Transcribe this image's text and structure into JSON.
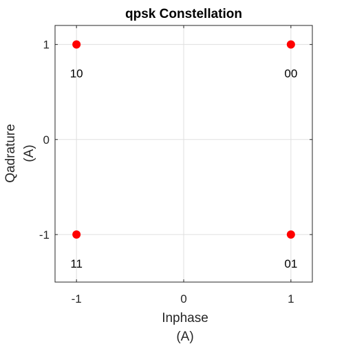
{
  "chart_data": {
    "type": "scatter",
    "title": "qpsk Constellation",
    "xlabel_lines": [
      "Inphase",
      "(A)"
    ],
    "ylabel_lines": [
      "Qadrature",
      "(A)"
    ],
    "xlim": [
      -1.2,
      1.2
    ],
    "ylim": [
      -1.5,
      1.2
    ],
    "xticks": [
      -1,
      0,
      1
    ],
    "xtick_labels": [
      "-1",
      "0",
      "1"
    ],
    "yticks": [
      -1,
      0,
      1
    ],
    "ytick_labels": [
      "-1",
      "0",
      "1"
    ],
    "grid": true,
    "legend": "none",
    "points": [
      {
        "x": -1,
        "y": 1,
        "label": "10"
      },
      {
        "x": 1,
        "y": 1,
        "label": "00"
      },
      {
        "x": -1,
        "y": -1,
        "label": "11"
      },
      {
        "x": 1,
        "y": -1,
        "label": "01"
      }
    ],
    "marker_color": "#ff0000"
  }
}
